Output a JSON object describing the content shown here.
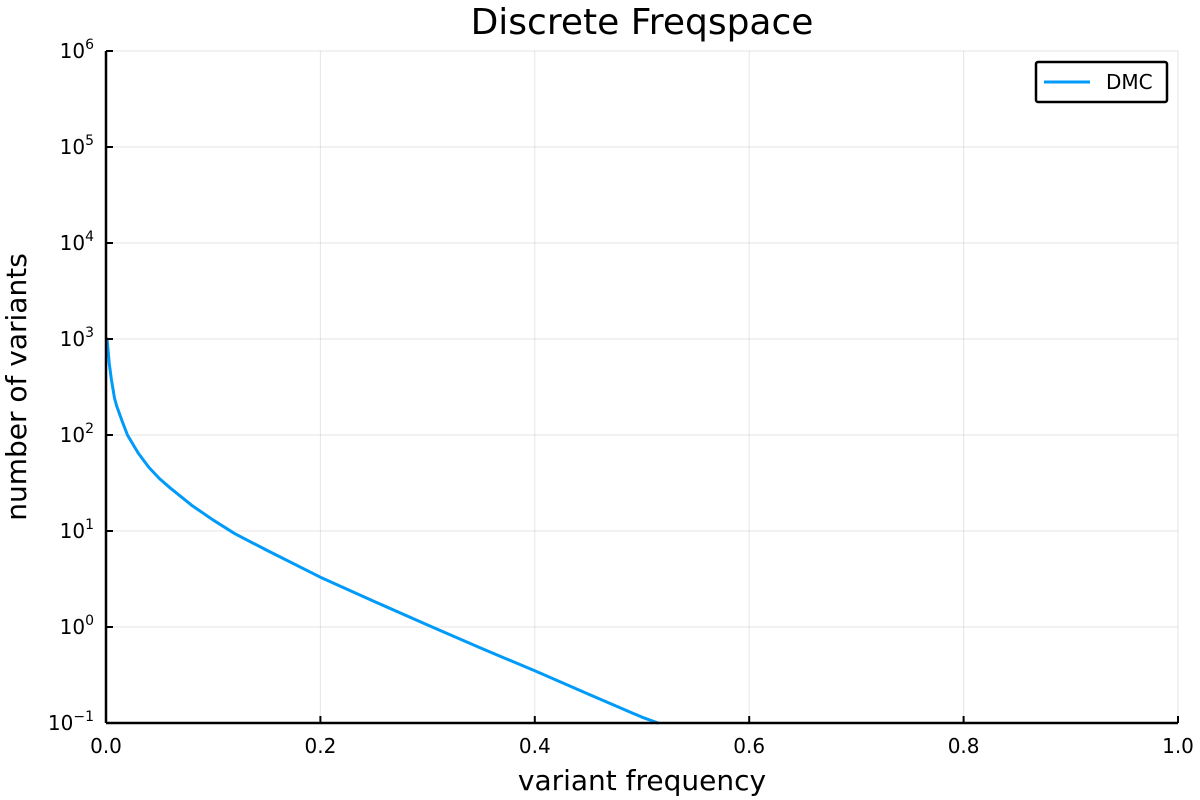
{
  "chart_data": {
    "type": "line",
    "title": "Discrete Freqspace",
    "xlabel": "variant frequency",
    "ylabel": "number of variants",
    "xlim": [
      0.0,
      1.0
    ],
    "ylim": [
      0.1,
      1000000
    ],
    "yscale": "log10",
    "grid": true,
    "legend_position": "top-right",
    "x_ticks": [
      "0.0",
      "0.2",
      "0.4",
      "0.6",
      "0.8",
      "1.0"
    ],
    "x_tick_values": [
      0.0,
      0.2,
      0.4,
      0.6,
      0.8,
      1.0
    ],
    "y_ticks": [
      {
        "base": "10",
        "exp": "−1",
        "value": 0.1
      },
      {
        "base": "10",
        "exp": "0",
        "value": 1
      },
      {
        "base": "10",
        "exp": "1",
        "value": 10
      },
      {
        "base": "10",
        "exp": "2",
        "value": 100
      },
      {
        "base": "10",
        "exp": "3",
        "value": 1000
      },
      {
        "base": "10",
        "exp": "4",
        "value": 10000
      },
      {
        "base": "10",
        "exp": "5",
        "value": 100000
      },
      {
        "base": "10",
        "exp": "6",
        "value": 1000000
      }
    ],
    "series": [
      {
        "name": "DMC",
        "color": "#009af9",
        "x": [
          0.001,
          0.003,
          0.005,
          0.008,
          0.01,
          0.015,
          0.02,
          0.03,
          0.04,
          0.05,
          0.06,
          0.08,
          0.1,
          0.12,
          0.15,
          0.2,
          0.25,
          0.3,
          0.35,
          0.4,
          0.45,
          0.5,
          0.515
        ],
        "y": [
          1000,
          560,
          380,
          240,
          200,
          140,
          100,
          65,
          46,
          35,
          28,
          18.5,
          13,
          9.4,
          6.3,
          3.3,
          1.85,
          1.05,
          0.6,
          0.35,
          0.2,
          0.115,
          0.1
        ]
      }
    ]
  }
}
